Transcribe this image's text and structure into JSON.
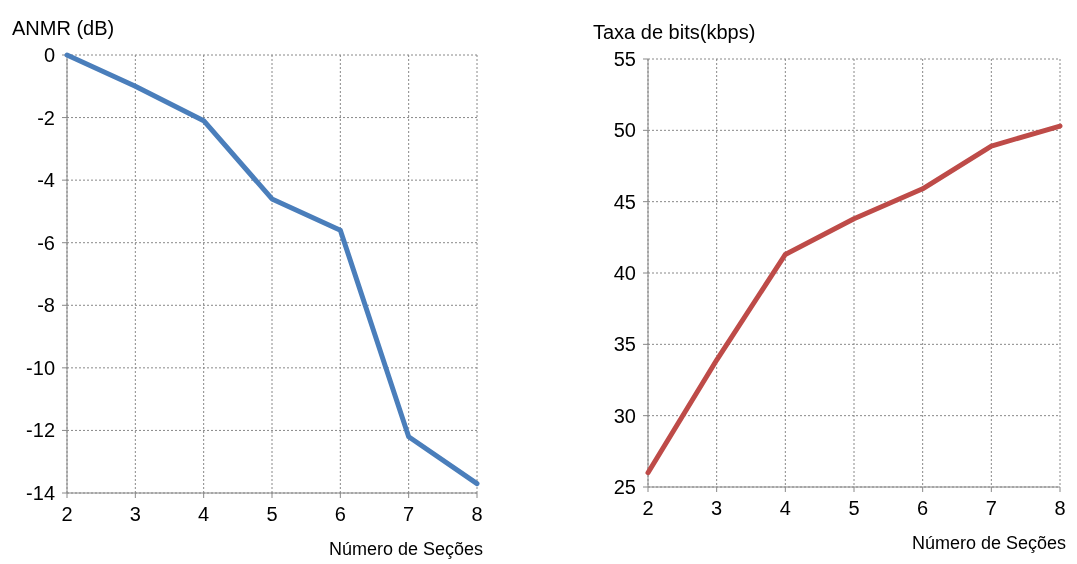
{
  "chart_data": [
    {
      "type": "line",
      "ylabel": "ANMR (dB)",
      "xlabel": "Número de Seções",
      "x": [
        2,
        3,
        4,
        5,
        6,
        7,
        8
      ],
      "xlim": [
        2,
        8
      ],
      "xticks": [
        2,
        3,
        4,
        5,
        6,
        7,
        8
      ],
      "ylim": [
        -14,
        0
      ],
      "yticks": [
        -14,
        -12,
        -10,
        -8,
        -6,
        -4,
        -2,
        0
      ],
      "grid": true,
      "marker": "none",
      "line_style": "solid",
      "series": [
        {
          "color": "#4a7ebb",
          "values": [
            0,
            -1.0,
            -2.1,
            -4.6,
            -5.6,
            -12.2,
            -13.7
          ]
        }
      ]
    },
    {
      "type": "line",
      "ylabel": "Taxa de bits(kbps)",
      "xlabel": "Número de Seções",
      "x": [
        2,
        3,
        4,
        5,
        6,
        7,
        8
      ],
      "xlim": [
        2,
        8
      ],
      "xticks": [
        2,
        3,
        4,
        5,
        6,
        7,
        8
      ],
      "ylim": [
        25,
        55
      ],
      "yticks": [
        25,
        30,
        35,
        40,
        45,
        50,
        55
      ],
      "grid": true,
      "marker": "none",
      "line_style": "solid",
      "series": [
        {
          "color": "#be4b48",
          "values": [
            26.0,
            33.9,
            41.3,
            43.8,
            45.9,
            48.9,
            50.3
          ]
        }
      ]
    }
  ]
}
